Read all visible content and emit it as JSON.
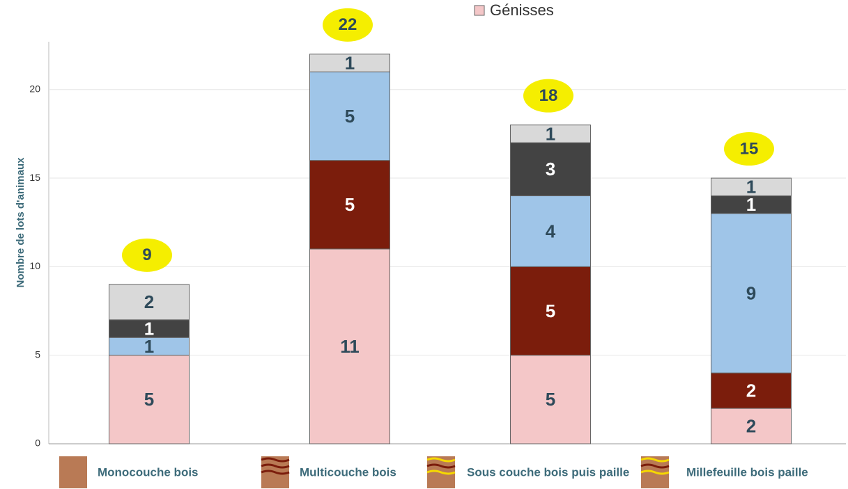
{
  "chart_data": {
    "type": "stacked_bar",
    "categories": [
      "Monocouche bois",
      "Multicouche bois",
      "Sous couche bois puis paille",
      "Millefeuille bois paille"
    ],
    "series": [
      {
        "name": "Génisses",
        "color": "#f4c7c8",
        "values": [
          5,
          11,
          5,
          2
        ]
      },
      {
        "color": "#7b1d0c",
        "values": [
          0,
          5,
          5,
          2
        ]
      },
      {
        "color": "#9fc5e8",
        "values": [
          1,
          5,
          4,
          9
        ]
      },
      {
        "color": "#434343",
        "values": [
          1,
          0,
          3,
          1
        ]
      },
      {
        "color": "#d9d9d9",
        "values": [
          2,
          1,
          1,
          1
        ]
      }
    ],
    "totals": [
      9,
      22,
      18,
      15
    ],
    "ylabel": "Nombre de lots d'animaux",
    "ylim": [
      0,
      22.7
    ],
    "yticks": [
      0,
      5,
      10,
      15,
      20
    ],
    "grid": true,
    "legend": "top"
  }
}
